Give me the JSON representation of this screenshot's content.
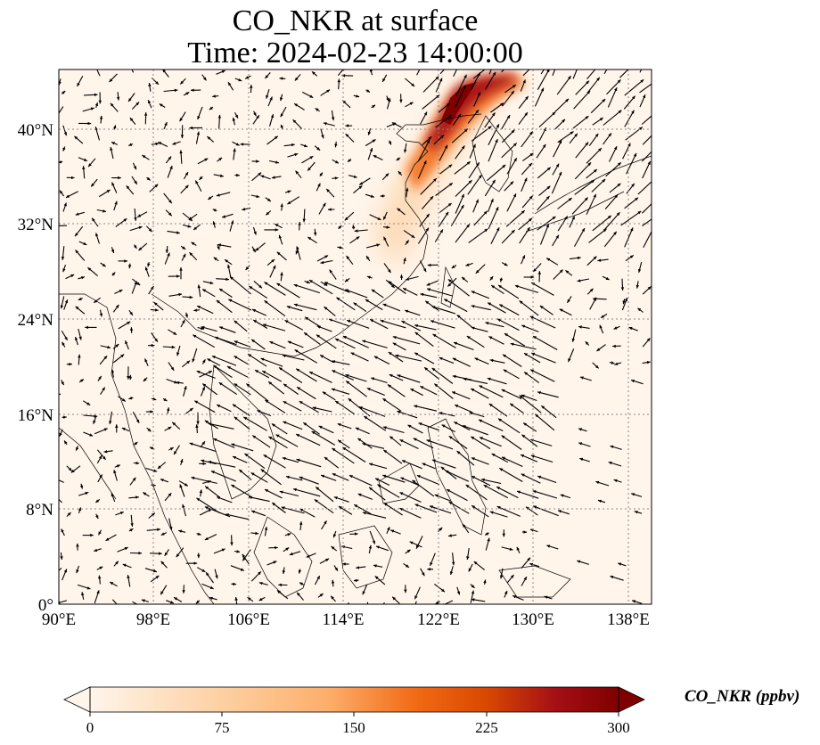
{
  "title": {
    "line1": "CO_NKR at surface",
    "line2": "Time: 2024-02-23 14:00:00"
  },
  "map": {
    "lon_range": [
      90,
      140
    ],
    "lat_range": [
      0,
      45
    ],
    "lon_ticks": [
      "90°E",
      "98°E",
      "106°E",
      "114°E",
      "122°E",
      "130°E",
      "138°E"
    ],
    "lat_ticks": [
      "0°",
      "8°N",
      "16°N",
      "24°N",
      "32°N",
      "40°N"
    ],
    "background_color": "#fff5eb",
    "high_concentration_color": "#8b0000",
    "plume_description_region": "northeast China / Korea coast"
  },
  "colorbar": {
    "label": "CO_NKR (ppbv)",
    "ticks": [
      "0",
      "75",
      "150",
      "225",
      "300"
    ],
    "min": 0,
    "max": 300,
    "colormap": [
      "#fff5eb",
      "#fdd0a2",
      "#fdae6b",
      "#f16913",
      "#d94801",
      "#a50f15",
      "#7f0000"
    ],
    "extend": "both"
  }
}
